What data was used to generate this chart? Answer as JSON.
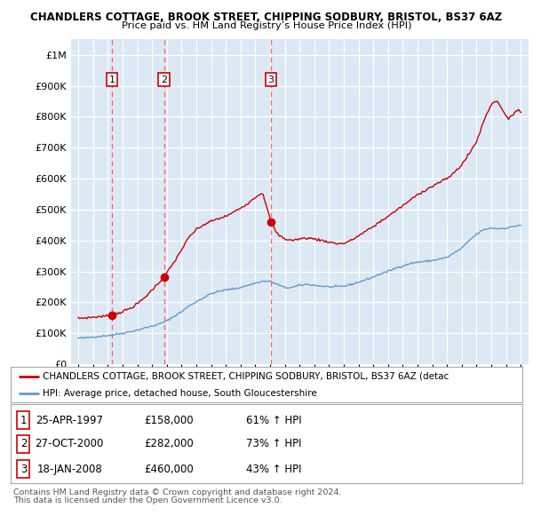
{
  "title1": "CHANDLERS COTTAGE, BROOK STREET, CHIPPING SODBURY, BRISTOL, BS37 6AZ",
  "title2": "Price paid vs. HM Land Registry’s House Price Index (HPI)",
  "line1_label": "CHANDLERS COTTAGE, BROOK STREET, CHIPPING SODBURY, BRISTOL, BS37 6AZ (detac",
  "line2_label": "HPI: Average price, detached house, South Gloucestershire",
  "transactions": [
    {
      "num": 1,
      "date": "25-APR-1997",
      "price": 158000,
      "hpi_change": "61% ↑ HPI",
      "year": 1997.29
    },
    {
      "num": 2,
      "date": "27-OCT-2000",
      "price": 282000,
      "hpi_change": "73% ↑ HPI",
      "year": 2000.82
    },
    {
      "num": 3,
      "date": "18-JAN-2008",
      "price": 460000,
      "hpi_change": "43% ↑ HPI",
      "year": 2008.05
    }
  ],
  "footnote1": "Contains HM Land Registry data © Crown copyright and database right 2024.",
  "footnote2": "This data is licensed under the Open Government Licence v3.0.",
  "red_color": "#cc0000",
  "blue_color": "#6699cc",
  "bg_color": "#dce9f5",
  "grid_color": "#ffffff",
  "dashed_line_color": "#ff6666",
  "ylim": [
    0,
    1050000
  ],
  "xlim_start": 1994.5,
  "xlim_end": 2025.5
}
